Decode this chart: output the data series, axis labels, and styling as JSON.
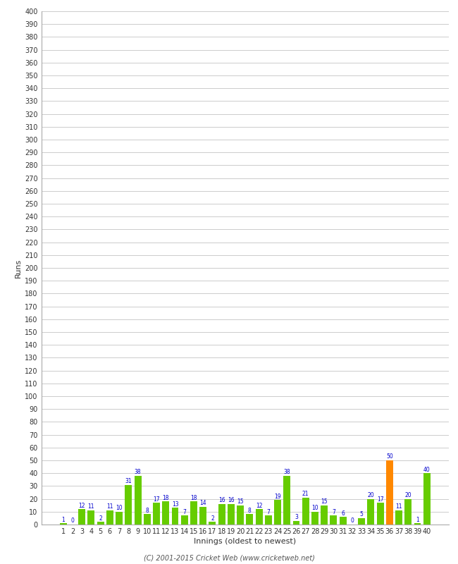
{
  "innings": [
    1,
    2,
    3,
    4,
    5,
    6,
    7,
    8,
    9,
    10,
    11,
    12,
    13,
    14,
    15,
    16,
    17,
    18,
    19,
    20,
    21,
    22,
    23,
    24,
    25,
    26,
    27,
    28,
    29,
    30,
    31,
    32,
    33,
    34,
    35,
    36,
    37,
    38,
    39,
    40
  ],
  "runs": [
    1,
    0,
    12,
    11,
    2,
    11,
    10,
    31,
    38,
    8,
    17,
    18,
    13,
    7,
    18,
    14,
    2,
    16,
    16,
    15,
    8,
    12,
    7,
    19,
    38,
    3,
    21,
    10,
    15,
    7,
    6,
    0,
    5,
    20,
    17,
    50,
    11,
    20,
    1,
    40
  ],
  "bar_colors": [
    "#66cc00",
    "#66cc00",
    "#66cc00",
    "#66cc00",
    "#66cc00",
    "#66cc00",
    "#66cc00",
    "#66cc00",
    "#66cc00",
    "#66cc00",
    "#66cc00",
    "#66cc00",
    "#66cc00",
    "#66cc00",
    "#66cc00",
    "#66cc00",
    "#66cc00",
    "#66cc00",
    "#66cc00",
    "#66cc00",
    "#66cc00",
    "#66cc00",
    "#66cc00",
    "#66cc00",
    "#66cc00",
    "#66cc00",
    "#66cc00",
    "#66cc00",
    "#66cc00",
    "#66cc00",
    "#66cc00",
    "#66cc00",
    "#66cc00",
    "#66cc00",
    "#66cc00",
    "#ff8800",
    "#66cc00",
    "#66cc00",
    "#66cc00",
    "#66cc00"
  ],
  "xlabel": "Innings (oldest to newest)",
  "ylabel": "Runs",
  "ylim": [
    0,
    400
  ],
  "yticks": [
    0,
    10,
    20,
    30,
    40,
    50,
    60,
    70,
    80,
    90,
    100,
    110,
    120,
    130,
    140,
    150,
    160,
    170,
    180,
    190,
    200,
    210,
    220,
    230,
    240,
    250,
    260,
    270,
    280,
    290,
    300,
    310,
    320,
    330,
    340,
    350,
    360,
    370,
    380,
    390,
    400
  ],
  "footer": "(C) 2001-2015 Cricket Web (www.cricketweb.net)",
  "background_color": "#ffffff",
  "grid_color": "#cccccc",
  "label_color": "#0000cc",
  "label_fontsize": 5.5,
  "tick_fontsize": 7,
  "axis_label_fontsize": 8,
  "bar_width": 0.75
}
